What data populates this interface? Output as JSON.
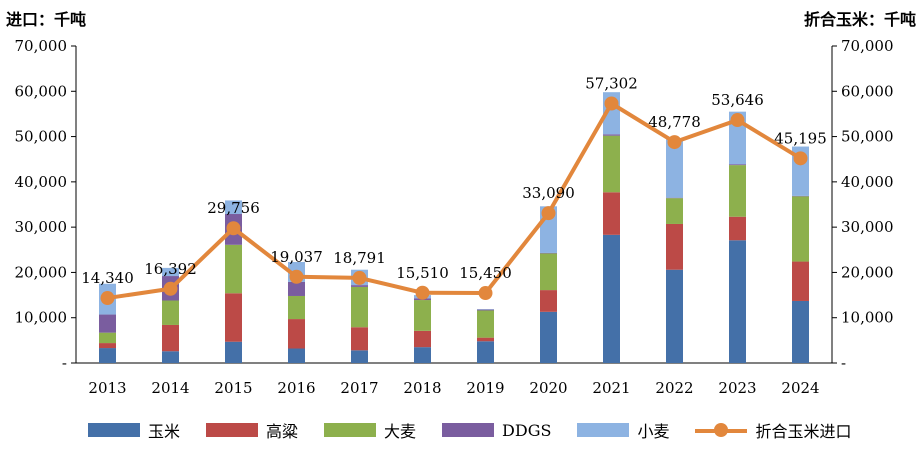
{
  "chart_data": {
    "type": "bar",
    "stacked": true,
    "left_axis_title": "进口：千吨",
    "right_axis_title": "折合玉米：千吨",
    "categories": [
      "2013",
      "2014",
      "2015",
      "2016",
      "2017",
      "2018",
      "2019",
      "2020",
      "2021",
      "2022",
      "2023",
      "2024"
    ],
    "y_ticks": [
      "-",
      "10,000",
      "20,000",
      "30,000",
      "40,000",
      "50,000",
      "60,000",
      "70,000"
    ],
    "ylim": [
      0,
      70000
    ],
    "series": [
      {
        "name": "玉米",
        "color": "#4470A8",
        "values": [
          3300,
          2600,
          4700,
          3200,
          2800,
          3500,
          4800,
          11300,
          28300,
          20600,
          27100,
          13700
        ]
      },
      {
        "name": "高粱",
        "color": "#BC4A47",
        "values": [
          1100,
          5800,
          10700,
          6500,
          5100,
          3600,
          800,
          4800,
          9400,
          10100,
          5200,
          8700
        ]
      },
      {
        "name": "大麦",
        "color": "#8DB04D",
        "values": [
          2300,
          5400,
          10700,
          5100,
          8900,
          6800,
          6000,
          8100,
          12500,
          5700,
          11400,
          14400
        ]
      },
      {
        "name": "DDGS",
        "color": "#7A5D9F",
        "values": [
          4000,
          5400,
          6800,
          3100,
          400,
          400,
          200,
          100,
          300,
          100,
          200,
          100
        ]
      },
      {
        "name": "小麦",
        "color": "#8DB3E2",
        "values": [
          6800,
          1800,
          3000,
          4400,
          3400,
          700,
          100,
          10300,
          9300,
          12900,
          11600,
          10900
        ]
      }
    ],
    "line": {
      "name": "折合玉米进口",
      "color": "#E2873C",
      "values": [
        14340,
        16392,
        29756,
        19037,
        18791,
        15510,
        15450,
        33090,
        57302,
        48778,
        53646,
        45195
      ],
      "labels": [
        "14,340",
        "16,392",
        "29,756",
        "19,037",
        "18,791",
        "15,510",
        "15,450",
        "33,090",
        "57,302",
        "48,778",
        "53,646",
        "45,195"
      ]
    }
  }
}
